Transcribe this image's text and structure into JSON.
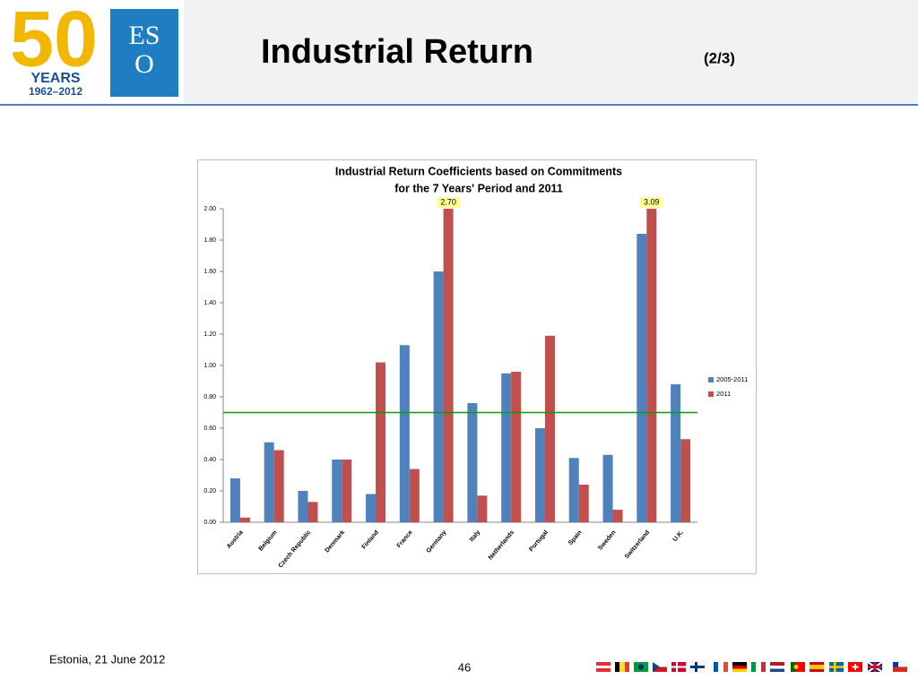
{
  "slide": {
    "title": "Industrial Return",
    "title_suffix": "(2/3)",
    "logo_number": "50",
    "logo_years": "YEARS",
    "logo_range": "1962–2012",
    "logo_eso_top": "ES",
    "logo_eso_bottom": "O",
    "footer_left": "Estonia, 21 June  2012",
    "page_number": "46"
  },
  "chart_data": {
    "type": "bar",
    "title": [
      "Industrial Return Coefficients based on Commitments",
      "for the 7 Years' Period and 2011"
    ],
    "categories": [
      "Austria",
      "Belgium",
      "Czech Republic",
      "Denmark",
      "Finland",
      "France",
      "Germany",
      "Italy",
      "Netherlands",
      "Portugal",
      "Spain",
      "Sweden",
      "Switzerland",
      "U.K."
    ],
    "series": [
      {
        "name": "2005-2011",
        "color": "#4f81bd",
        "values": [
          0.28,
          0.51,
          0.2,
          0.4,
          0.18,
          1.13,
          1.6,
          0.76,
          0.95,
          0.6,
          0.41,
          0.43,
          1.84,
          0.88
        ]
      },
      {
        "name": "2011",
        "color": "#c0504d",
        "values": [
          0.03,
          0.46,
          0.13,
          0.4,
          1.02,
          0.34,
          2.7,
          0.17,
          0.96,
          1.19,
          0.24,
          0.08,
          3.09,
          0.53
        ],
        "value_labels": [
          null,
          null,
          null,
          null,
          null,
          null,
          "2.70",
          null,
          null,
          null,
          null,
          null,
          "3.09",
          null
        ]
      }
    ],
    "ylim": [
      0,
      2
    ],
    "yticks": [
      {
        "value": 0,
        "label": "0.00"
      },
      {
        "value": 0.2,
        "label": "0.20"
      },
      {
        "value": 0.4,
        "label": "0.40"
      },
      {
        "value": 0.6,
        "label": "0.60"
      },
      {
        "value": 0.8,
        "label": "0.80"
      },
      {
        "value": 1,
        "label": "1.00"
      },
      {
        "value": 1.2,
        "label": "1.20"
      },
      {
        "value": 1.4,
        "label": "1.40"
      },
      {
        "value": 1.6,
        "label": "1.60"
      },
      {
        "value": 1.8,
        "label": "1.80"
      },
      {
        "value": 2,
        "label": "2.00"
      }
    ],
    "reference_line": {
      "value": 0.7,
      "color": "#00a000"
    },
    "legend": "right",
    "grid": false
  }
}
